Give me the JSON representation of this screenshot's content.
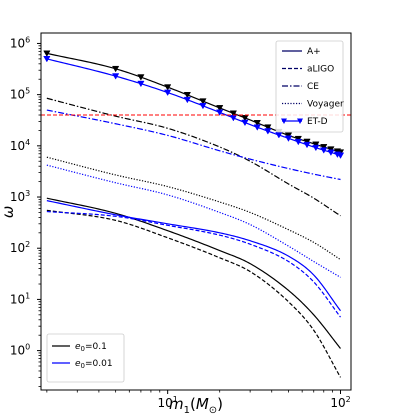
{
  "chart_data": {
    "type": "line",
    "xscale": "log",
    "yscale": "log",
    "xlim": [
      1.85,
      115
    ],
    "ylim": [
      0.17,
      1600000
    ],
    "xlabel": "m_1(M_⊙)",
    "ylabel": "ω",
    "x_tick_labels": [
      {
        "value": 10,
        "base": "10",
        "exp": "1"
      },
      {
        "value": 100,
        "base": "10",
        "exp": "2"
      }
    ],
    "y_tick_labels": [
      {
        "value": 1,
        "base": "10",
        "exp": "0"
      },
      {
        "value": 10,
        "base": "10",
        "exp": "1"
      },
      {
        "value": 100,
        "base": "10",
        "exp": "2"
      },
      {
        "value": 1000,
        "base": "10",
        "exp": "3"
      },
      {
        "value": 10000,
        "base": "10",
        "exp": "4"
      },
      {
        "value": 100000,
        "base": "10",
        "exp": "5"
      },
      {
        "value": 1000000,
        "base": "10",
        "exp": "6"
      }
    ],
    "hline": {
      "y": 40000,
      "color": "#ff0000",
      "style": "dashed"
    },
    "legend_detectors": [
      {
        "label": "A+",
        "dash": "solid",
        "marker": false
      },
      {
        "label": "aLIGO",
        "dash": "dashed",
        "marker": false
      },
      {
        "label": "CE",
        "dash": "dashdot",
        "marker": false
      },
      {
        "label": "Voyager",
        "dash": "dotted",
        "marker": false
      },
      {
        "label": "ET-D",
        "dash": "solid",
        "marker": true
      }
    ],
    "legend_eccentricity": [
      {
        "label": "e_0=0.1",
        "color": "#000000"
      },
      {
        "label": "e_0=0.01",
        "color": "#0000ff"
      }
    ],
    "series": [
      {
        "detector": "ET-D",
        "e0": "0.1",
        "color": "#000000",
        "dash": "solid",
        "marker": true,
        "x": [
          2,
          5,
          10,
          20,
          30,
          50,
          70,
          100
        ],
        "y": [
          640000,
          320000,
          140000,
          55000,
          32000,
          16000,
          11000,
          7500
        ]
      },
      {
        "detector": "ET-D",
        "e0": "0.01",
        "color": "#0000ff",
        "dash": "solid",
        "marker": true,
        "x": [
          2,
          5,
          10,
          20,
          30,
          50,
          70,
          100
        ],
        "y": [
          500000,
          230000,
          110000,
          45000,
          26000,
          14000,
          9500,
          6500
        ]
      },
      {
        "detector": "CE",
        "e0": "0.1",
        "color": "#000000",
        "dash": "dashdot",
        "marker": false,
        "x": [
          2,
          5,
          10,
          20,
          30,
          50,
          70,
          100
        ],
        "y": [
          85000,
          38000,
          22000,
          9500,
          5000,
          1800,
          950,
          430
        ]
      },
      {
        "detector": "CE",
        "e0": "0.01",
        "color": "#0000ff",
        "dash": "dashdot",
        "marker": false,
        "x": [
          2,
          5,
          10,
          20,
          30,
          50,
          70,
          100
        ],
        "y": [
          50000,
          27000,
          16000,
          8000,
          5500,
          3600,
          2800,
          2200
        ]
      },
      {
        "detector": "Voyager",
        "e0": "0.1",
        "color": "#000000",
        "dash": "dotted",
        "marker": false,
        "x": [
          2,
          5,
          10,
          20,
          30,
          50,
          70,
          100
        ],
        "y": [
          6000,
          2700,
          1600,
          800,
          500,
          230,
          130,
          60
        ]
      },
      {
        "detector": "Voyager",
        "e0": "0.01",
        "color": "#0000ff",
        "dash": "dotted",
        "marker": false,
        "x": [
          2,
          5,
          10,
          20,
          30,
          50,
          70,
          100
        ],
        "y": [
          4200,
          1900,
          1100,
          500,
          290,
          110,
          55,
          27
        ]
      },
      {
        "detector": "A+",
        "e0": "0.1",
        "color": "#000000",
        "dash": "solid",
        "marker": false,
        "x": [
          2,
          5,
          10,
          20,
          30,
          50,
          70,
          100
        ],
        "y": [
          950,
          480,
          220,
          90,
          50,
          15,
          5,
          1.1
        ]
      },
      {
        "detector": "A+",
        "e0": "0.01",
        "color": "#0000ff",
        "dash": "solid",
        "marker": false,
        "x": [
          2,
          5,
          10,
          20,
          30,
          50,
          70,
          100
        ],
        "y": [
          850,
          450,
          300,
          200,
          140,
          70,
          30,
          6
        ]
      },
      {
        "detector": "aLIGO",
        "e0": "0.1",
        "color": "#000000",
        "dash": "dashed",
        "marker": false,
        "x": [
          2,
          5,
          10,
          20,
          30,
          50,
          70,
          100
        ],
        "y": [
          550,
          350,
          160,
          65,
          35,
          9,
          2.5,
          0.3
        ]
      },
      {
        "detector": "aLIGO",
        "e0": "0.01",
        "color": "#0000ff",
        "dash": "dashed",
        "marker": false,
        "x": [
          2,
          5,
          10,
          20,
          30,
          50,
          70,
          100
        ],
        "y": [
          520,
          420,
          280,
          180,
          120,
          55,
          22,
          4.5
        ]
      }
    ]
  }
}
